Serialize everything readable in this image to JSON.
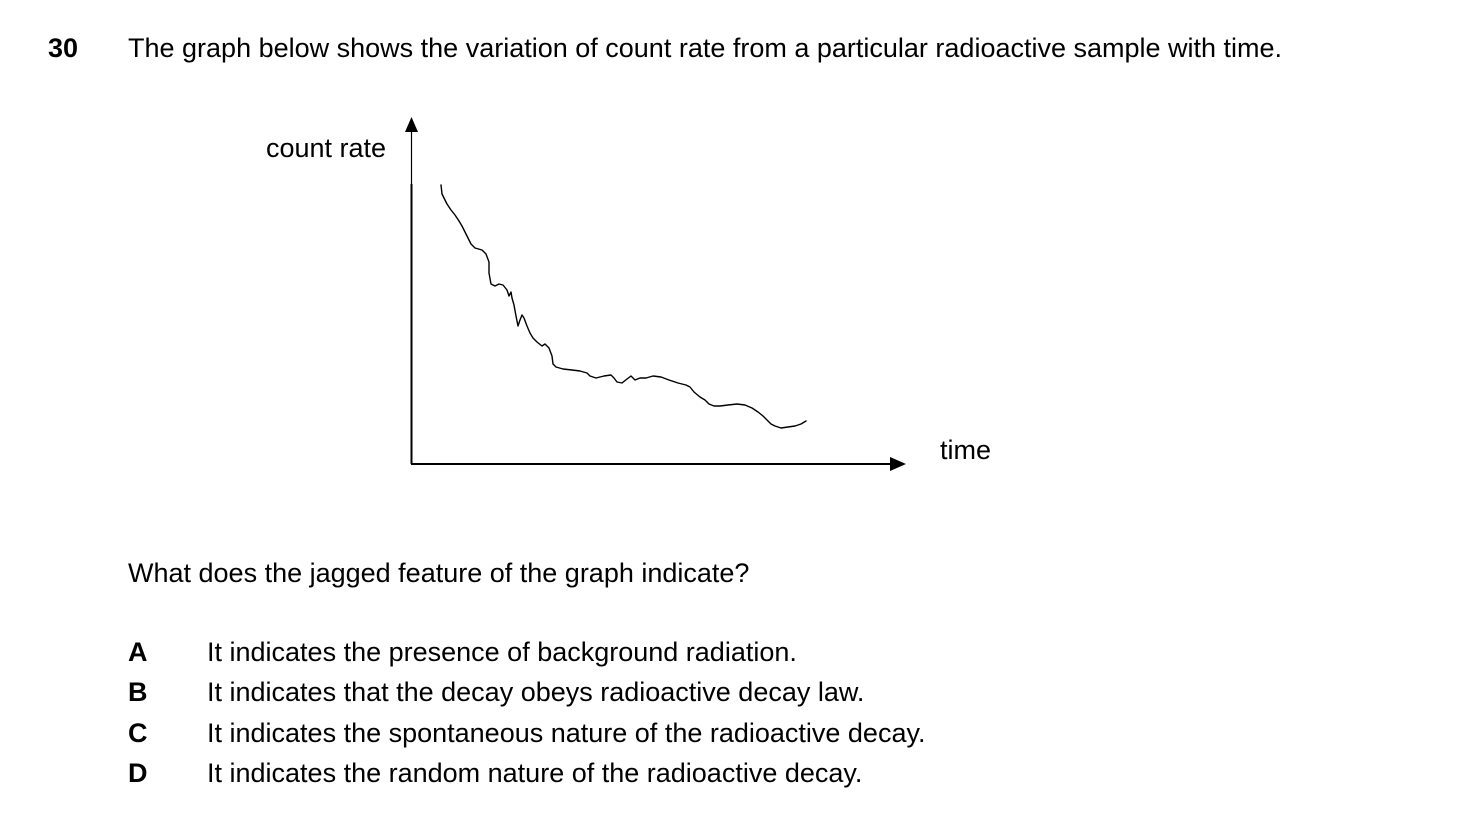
{
  "question": {
    "number": "30",
    "stem": "The graph below shows the variation of count rate from a particular radioactive sample with time.",
    "prompt": "What does the jagged feature of the graph indicate?"
  },
  "graph": {
    "y_axis_label": "count rate",
    "x_axis_label": "time"
  },
  "options": [
    {
      "letter": "A",
      "text": "It indicates the presence of background radiation."
    },
    {
      "letter": "B",
      "text": "It indicates that the decay obeys radioactive decay law."
    },
    {
      "letter": "C",
      "text": "It indicates the spontaneous nature of the radioactive decay."
    },
    {
      "letter": "D",
      "text": "It indicates the random nature of the radioactive decay."
    }
  ]
}
